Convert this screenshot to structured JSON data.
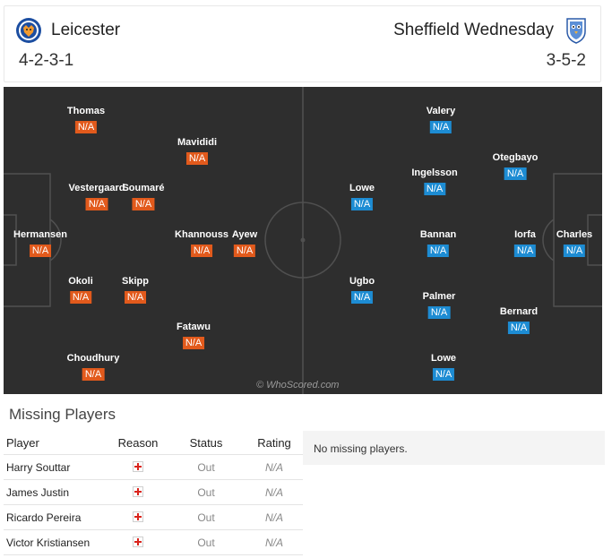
{
  "home": {
    "name": "Leicester",
    "formation": "4-2-3-1",
    "crest_icon": "fox-crest-icon",
    "rating_color": "#e25a1c",
    "players": [
      {
        "name": "Thomas",
        "rating": "N/A"
      },
      {
        "name": "Mavididi",
        "rating": "N/A"
      },
      {
        "name": "Vestergaard",
        "rating": "N/A"
      },
      {
        "name": "Soumaré",
        "rating": "N/A"
      },
      {
        "name": "Hermansen",
        "rating": "N/A"
      },
      {
        "name": "Khannouss",
        "rating": "N/A"
      },
      {
        "name": "Ayew",
        "rating": "N/A"
      },
      {
        "name": "Okoli",
        "rating": "N/A"
      },
      {
        "name": "Skipp",
        "rating": "N/A"
      },
      {
        "name": "Fatawu",
        "rating": "N/A"
      },
      {
        "name": "Choudhury",
        "rating": "N/A"
      }
    ]
  },
  "away": {
    "name": "Sheffield Wednesday",
    "formation": "3-5-2",
    "crest_icon": "owl-crest-icon",
    "rating_color": "#1d8cd3",
    "players": [
      {
        "name": "Valery",
        "rating": "N/A"
      },
      {
        "name": "Otegbayo",
        "rating": "N/A"
      },
      {
        "name": "Ingelsson",
        "rating": "N/A"
      },
      {
        "name": "Lowe",
        "rating": "N/A"
      },
      {
        "name": "Bannan",
        "rating": "N/A"
      },
      {
        "name": "Iorfa",
        "rating": "N/A"
      },
      {
        "name": "Charles",
        "rating": "N/A"
      },
      {
        "name": "Ugbo",
        "rating": "N/A"
      },
      {
        "name": "Palmer",
        "rating": "N/A"
      },
      {
        "name": "Bernard",
        "rating": "N/A"
      },
      {
        "name": "Lowe",
        "rating": "N/A"
      }
    ]
  },
  "watermark": "© WhoScored.com",
  "missing": {
    "title": "Missing Players",
    "headers": {
      "player": "Player",
      "reason": "Reason",
      "status": "Status",
      "rating": "Rating"
    },
    "reason_icon": "injury-cross-icon",
    "rows": [
      {
        "player": "Harry Souttar",
        "status": "Out",
        "rating": "N/A"
      },
      {
        "player": "James Justin",
        "status": "Out",
        "rating": "N/A"
      },
      {
        "player": "Ricardo Pereira",
        "status": "Out",
        "rating": "N/A"
      },
      {
        "player": "Victor Kristiansen",
        "status": "Out",
        "rating": "N/A"
      }
    ],
    "away_empty_text": "No missing players."
  }
}
